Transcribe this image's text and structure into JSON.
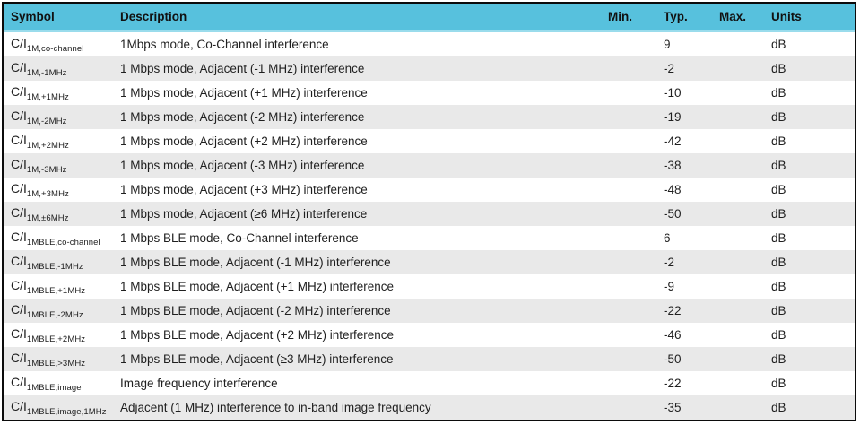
{
  "colors": {
    "header_bg": "#57c1dd",
    "header_edge": "#9adcec",
    "row_alt_bg": "#e9e9e9",
    "frame_border": "#0b0b0b",
    "text": "#1f1f1f"
  },
  "table": {
    "columns": [
      "Symbol",
      "Description",
      "Min.",
      "Typ.",
      "Max.",
      "Units"
    ],
    "rows": [
      {
        "symbol_base": "C/I",
        "symbol_sub": "1M,co-channel",
        "description": "1Mbps mode, Co-Channel interference",
        "min": "",
        "typ": "9",
        "max": "",
        "units": "dB"
      },
      {
        "symbol_base": "C/I",
        "symbol_sub": "1M,-1MHz",
        "description": "1 Mbps mode, Adjacent (-1 MHz) interference",
        "min": "",
        "typ": "-2",
        "max": "",
        "units": "dB"
      },
      {
        "symbol_base": "C/I",
        "symbol_sub": "1M,+1MHz",
        "description": "1 Mbps mode, Adjacent (+1 MHz) interference",
        "min": "",
        "typ": "-10",
        "max": "",
        "units": "dB"
      },
      {
        "symbol_base": "C/I",
        "symbol_sub": "1M,-2MHz",
        "description": "1 Mbps mode, Adjacent (-2 MHz) interference",
        "min": "",
        "typ": "-19",
        "max": "",
        "units": "dB"
      },
      {
        "symbol_base": "C/I",
        "symbol_sub": "1M,+2MHz",
        "description": "1 Mbps mode, Adjacent (+2 MHz) interference",
        "min": "",
        "typ": "-42",
        "max": "",
        "units": "dB"
      },
      {
        "symbol_base": "C/I",
        "symbol_sub": "1M,-3MHz",
        "description": "1 Mbps mode, Adjacent (-3 MHz) interference",
        "min": "",
        "typ": "-38",
        "max": "",
        "units": "dB"
      },
      {
        "symbol_base": "C/I",
        "symbol_sub": "1M,+3MHz",
        "description": "1 Mbps mode, Adjacent (+3 MHz) interference",
        "min": "",
        "typ": "-48",
        "max": "",
        "units": "dB"
      },
      {
        "symbol_base": "C/I",
        "symbol_sub": "1M,±6MHz",
        "description": "1 Mbps mode, Adjacent (≥6 MHz) interference",
        "min": "",
        "typ": "-50",
        "max": "",
        "units": "dB"
      },
      {
        "symbol_base": "C/I",
        "symbol_sub": "1MBLE,co-channel",
        "description": "1 Mbps BLE mode, Co-Channel interference",
        "min": "",
        "typ": "6",
        "max": "",
        "units": "dB"
      },
      {
        "symbol_base": "C/I",
        "symbol_sub": "1MBLE,-1MHz",
        "description": "1 Mbps BLE mode, Adjacent (-1 MHz) interference",
        "min": "",
        "typ": "-2",
        "max": "",
        "units": "dB"
      },
      {
        "symbol_base": "C/I",
        "symbol_sub": "1MBLE,+1MHz",
        "description": "1 Mbps BLE mode, Adjacent (+1 MHz) interference",
        "min": "",
        "typ": "-9",
        "max": "",
        "units": "dB"
      },
      {
        "symbol_base": "C/I",
        "symbol_sub": "1MBLE,-2MHz",
        "description": "1 Mbps BLE mode, Adjacent (-2 MHz) interference",
        "min": "",
        "typ": "-22",
        "max": "",
        "units": "dB"
      },
      {
        "symbol_base": "C/I",
        "symbol_sub": "1MBLE,+2MHz",
        "description": "1 Mbps BLE mode, Adjacent (+2 MHz) interference",
        "min": "",
        "typ": "-46",
        "max": "",
        "units": "dB"
      },
      {
        "symbol_base": "C/I",
        "symbol_sub": "1MBLE,>3MHz",
        "description": "1 Mbps BLE mode, Adjacent (≥3 MHz) interference",
        "min": "",
        "typ": "-50",
        "max": "",
        "units": "dB"
      },
      {
        "symbol_base": "C/I",
        "symbol_sub": "1MBLE,image",
        "description": "Image frequency interference",
        "min": "",
        "typ": "-22",
        "max": "",
        "units": "dB"
      },
      {
        "symbol_base": "C/I",
        "symbol_sub": "1MBLE,image,1MHz",
        "description": "Adjacent (1 MHz) interference to in-band image frequency",
        "min": "",
        "typ": "-35",
        "max": "",
        "units": "dB"
      }
    ]
  }
}
